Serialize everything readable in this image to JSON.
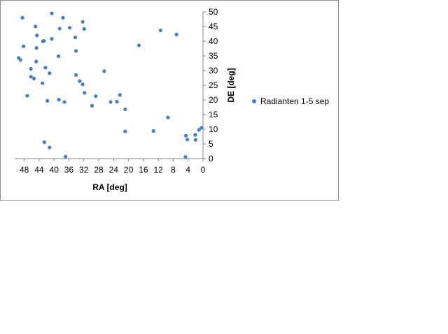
{
  "chart_data": {
    "type": "scatter",
    "xlabel": "RA [deg]",
    "ylabel": "DE [deg]",
    "xlim": [
      0,
      50
    ],
    "x_reversed": true,
    "ylim": [
      0,
      50
    ],
    "y_axis_side": "right",
    "x_ticks": [
      48,
      44,
      40,
      36,
      32,
      28,
      24,
      20,
      16,
      12,
      8,
      4,
      0
    ],
    "y_ticks": [
      0,
      5,
      10,
      15,
      20,
      25,
      30,
      35,
      40,
      45,
      50
    ],
    "grid": false,
    "legend_position": "right",
    "marker_color": "#4a7ebb",
    "series": [
      {
        "name": "Radianten 1-5 sep",
        "points": [
          [
            48.5,
            48.0
          ],
          [
            48.2,
            38.3
          ],
          [
            49.5,
            34.3
          ],
          [
            49.0,
            33.6
          ],
          [
            47.2,
            21.4
          ],
          [
            45.0,
            45.0
          ],
          [
            44.6,
            42.0
          ],
          [
            44.7,
            37.7
          ],
          [
            44.8,
            33.1
          ],
          [
            46.2,
            30.6
          ],
          [
            46.2,
            27.9
          ],
          [
            45.4,
            27.3
          ],
          [
            43.0,
            40.0
          ],
          [
            42.7,
            40.1
          ],
          [
            43.1,
            25.7
          ],
          [
            42.3,
            31.0
          ],
          [
            41.2,
            29.1
          ],
          [
            40.6,
            40.8
          ],
          [
            40.6,
            49.5
          ],
          [
            41.8,
            19.7
          ],
          [
            42.6,
            5.6
          ],
          [
            41.2,
            3.8
          ],
          [
            37.6,
            48.0
          ],
          [
            38.5,
            44.3
          ],
          [
            35.8,
            44.6
          ],
          [
            34.3,
            41.3
          ],
          [
            34.1,
            36.7
          ],
          [
            38.8,
            34.9
          ],
          [
            34.1,
            28.5
          ],
          [
            33.1,
            26.4
          ],
          [
            32.3,
            25.3
          ],
          [
            31.8,
            22.4
          ],
          [
            38.7,
            20.1
          ],
          [
            37.2,
            19.3
          ],
          [
            31.9,
            44.2
          ],
          [
            32.3,
            46.6
          ],
          [
            28.8,
            21.3
          ],
          [
            29.8,
            18.0
          ],
          [
            26.5,
            29.8
          ],
          [
            24.8,
            19.3
          ],
          [
            23.1,
            19.4
          ],
          [
            22.3,
            21.7
          ],
          [
            20.9,
            16.8
          ],
          [
            20.9,
            9.3
          ],
          [
            36.9,
            0.7
          ],
          [
            17.2,
            38.6
          ],
          [
            13.3,
            9.4
          ],
          [
            11.4,
            43.7
          ],
          [
            9.4,
            14.0
          ],
          [
            7.1,
            42.3
          ],
          [
            4.6,
            7.8
          ],
          [
            4.2,
            6.5
          ],
          [
            4.7,
            0.6
          ],
          [
            2.1,
            8.1
          ],
          [
            2.0,
            6.4
          ],
          [
            1.1,
            9.8
          ],
          [
            0.4,
            10.5
          ]
        ]
      }
    ]
  }
}
